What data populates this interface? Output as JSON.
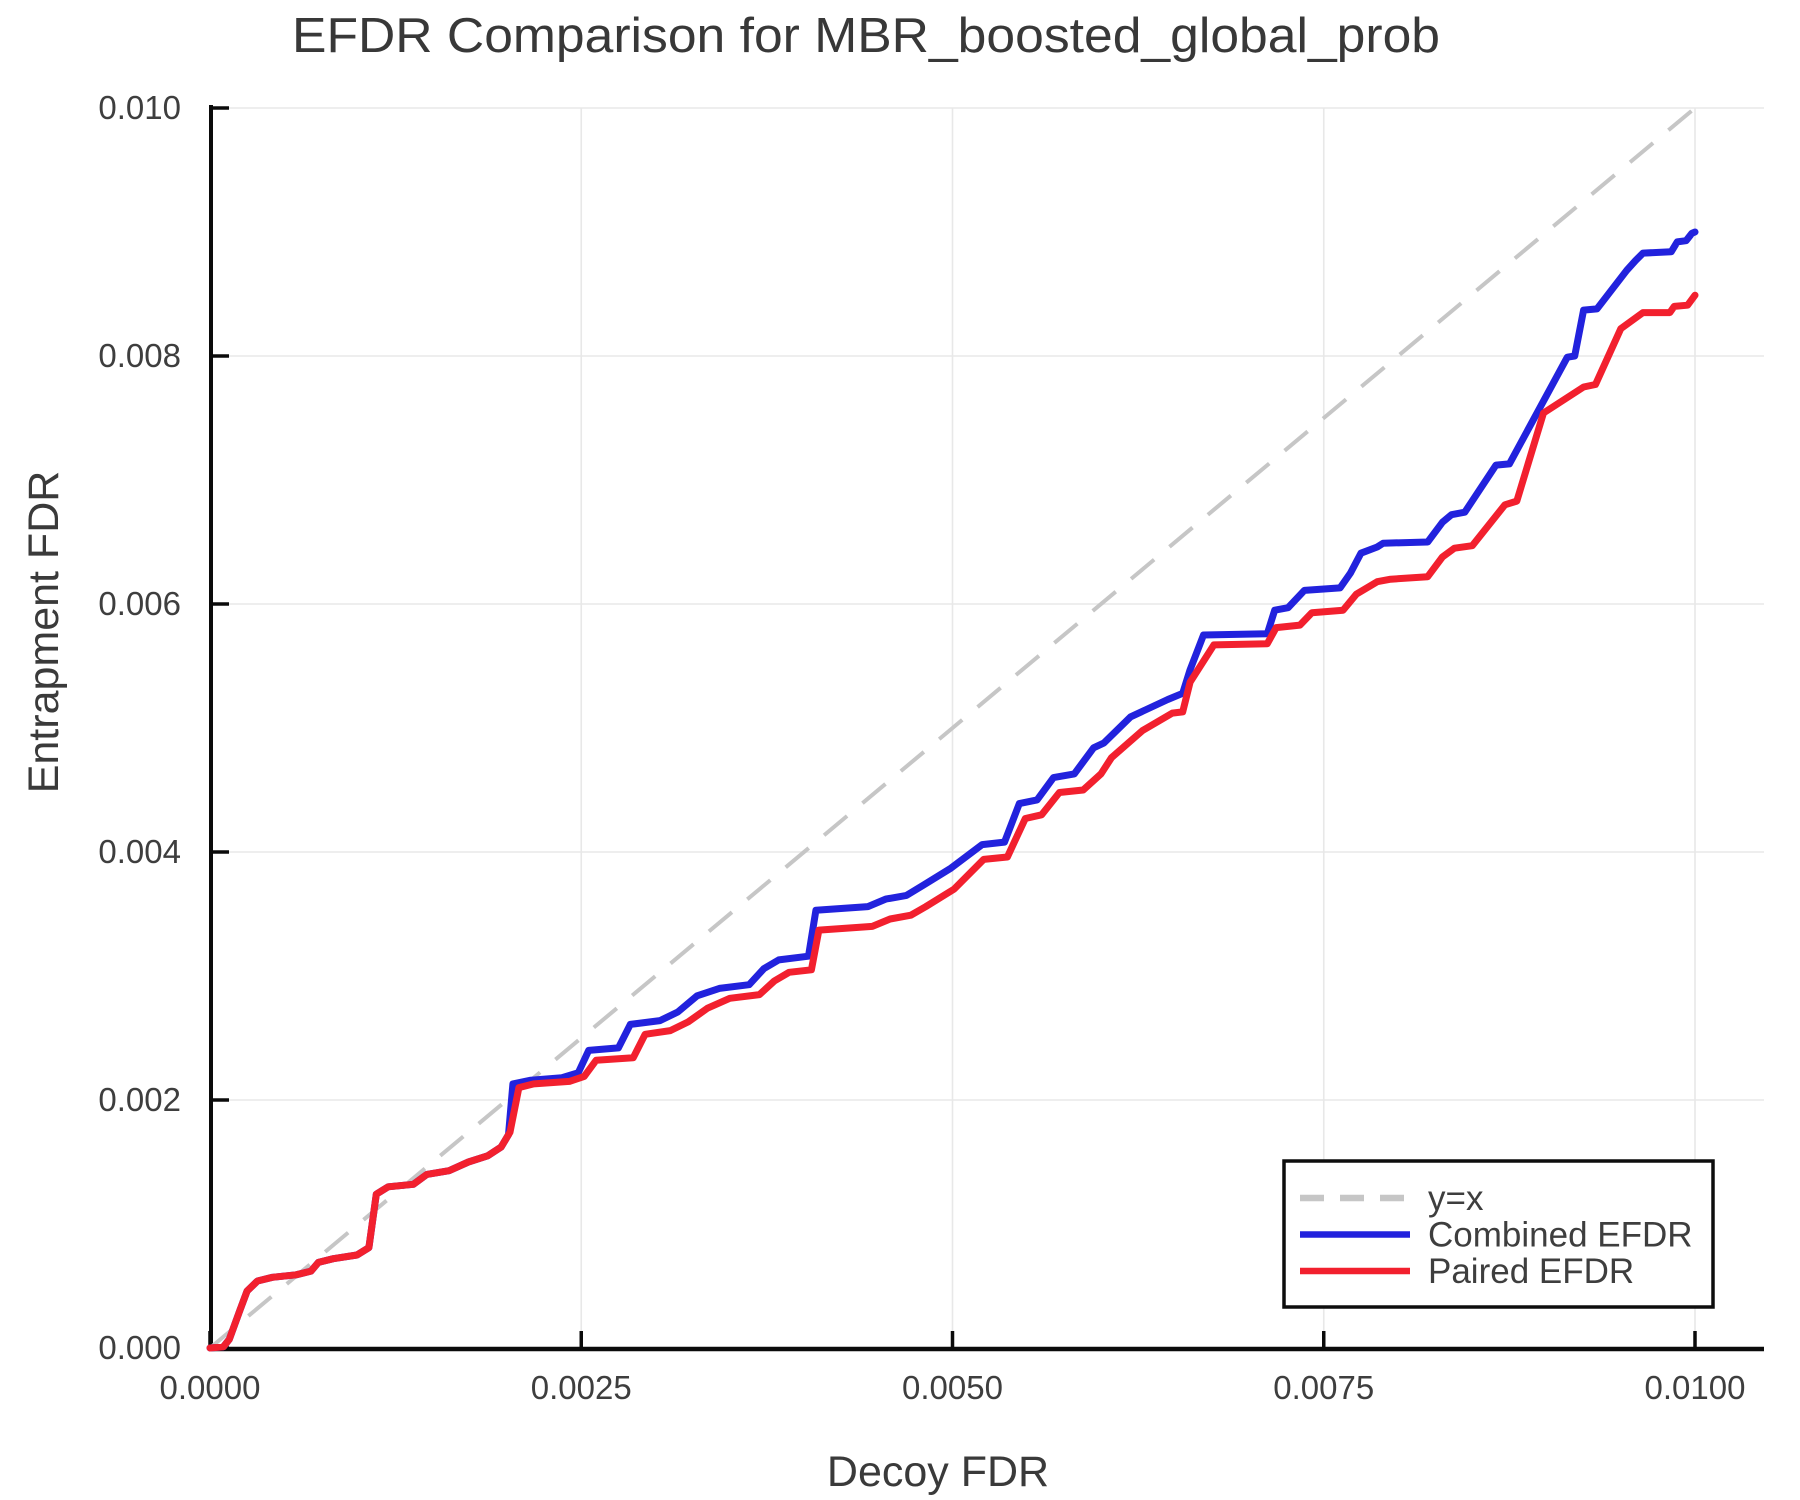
{
  "title": "EFDR Comparison for MBR_boosted_global_prob",
  "x_axis": {
    "label": "Decoy FDR",
    "tick_labels": [
      "0.0000",
      "0.0025",
      "0.0050",
      "0.0075",
      "0.0100"
    ],
    "tick_values": [
      0.0,
      0.0025,
      0.005,
      0.0075,
      0.01
    ]
  },
  "y_axis": {
    "label": "Entrapment FDR",
    "tick_labels": [
      "0.000",
      "0.002",
      "0.004",
      "0.006",
      "0.008",
      "0.010"
    ],
    "tick_values": [
      0.0,
      0.002,
      0.004,
      0.006,
      0.008,
      0.01
    ]
  },
  "colors": {
    "grid": "#e8e8e8",
    "identity": "#c6c6c6",
    "combined": "#2222dd",
    "paired": "#f2202e",
    "text": "#3d3d3d"
  },
  "chart_data": {
    "type": "line",
    "title": "EFDR Comparison for MBR_boosted_global_prob",
    "xlabel": "Decoy FDR",
    "ylabel": "Entrapment FDR",
    "xlim": [
      0.0,
      0.0105
    ],
    "ylim": [
      0.0,
      0.0101
    ],
    "grid": true,
    "legend_position": "bottom-right",
    "series": [
      {
        "name": "y=x",
        "style": "dashed",
        "color": "#c6c6c6",
        "points": [
          [
            0.0,
            0.0
          ],
          [
            0.01,
            0.01
          ]
        ]
      },
      {
        "name": "Combined EFDR",
        "style": "solid",
        "color": "#2222dd",
        "points": [
          [
            0.0,
            0.0
          ],
          [
            9e-05,
            1e-05
          ],
          [
            0.00013,
            7e-05
          ],
          [
            0.0002,
            0.0003
          ],
          [
            0.00025,
            0.00046
          ],
          [
            0.00032,
            0.00054
          ],
          [
            0.00042,
            0.00057
          ],
          [
            0.00058,
            0.00059
          ],
          [
            0.00068,
            0.00062
          ],
          [
            0.00073,
            0.00069
          ],
          [
            0.00083,
            0.00072
          ],
          [
            0.00099,
            0.00075
          ],
          [
            0.00107,
            0.00081
          ],
          [
            0.00112,
            0.00124
          ],
          [
            0.0012,
            0.0013
          ],
          [
            0.00137,
            0.00132
          ],
          [
            0.00146,
            0.0014
          ],
          [
            0.00161,
            0.00143
          ],
          [
            0.00174,
            0.0015
          ],
          [
            0.00187,
            0.00155
          ],
          [
            0.00196,
            0.00162
          ],
          [
            0.00201,
            0.00172
          ],
          [
            0.00204,
            0.00213
          ],
          [
            0.00216,
            0.00216
          ],
          [
            0.00237,
            0.00218
          ],
          [
            0.00248,
            0.00222
          ],
          [
            0.00255,
            0.0024
          ],
          [
            0.00275,
            0.00242
          ],
          [
            0.00283,
            0.00261
          ],
          [
            0.00303,
            0.00264
          ],
          [
            0.00315,
            0.00271
          ],
          [
            0.00328,
            0.00284
          ],
          [
            0.00343,
            0.0029
          ],
          [
            0.00363,
            0.00293
          ],
          [
            0.00373,
            0.00306
          ],
          [
            0.00383,
            0.00313
          ],
          [
            0.00403,
            0.00316
          ],
          [
            0.00408,
            0.00353
          ],
          [
            0.00443,
            0.00356
          ],
          [
            0.00455,
            0.00362
          ],
          [
            0.00469,
            0.00365
          ],
          [
            0.0048,
            0.00373
          ],
          [
            0.00499,
            0.00387
          ],
          [
            0.0052,
            0.00406
          ],
          [
            0.00535,
            0.00408
          ],
          [
            0.00545,
            0.00439
          ],
          [
            0.00557,
            0.00442
          ],
          [
            0.00568,
            0.0046
          ],
          [
            0.00582,
            0.00463
          ],
          [
            0.00595,
            0.00484
          ],
          [
            0.00602,
            0.00488
          ],
          [
            0.0062,
            0.00509
          ],
          [
            0.00645,
            0.00523
          ],
          [
            0.00655,
            0.00528
          ],
          [
            0.0066,
            0.00547
          ],
          [
            0.00669,
            0.00575
          ],
          [
            0.00712,
            0.00576
          ],
          [
            0.00717,
            0.00595
          ],
          [
            0.00726,
            0.00597
          ],
          [
            0.00737,
            0.00611
          ],
          [
            0.00761,
            0.00613
          ],
          [
            0.00768,
            0.00625
          ],
          [
            0.00775,
            0.00641
          ],
          [
            0.00786,
            0.00646
          ],
          [
            0.0079,
            0.00649
          ],
          [
            0.0082,
            0.0065
          ],
          [
            0.0083,
            0.00666
          ],
          [
            0.00836,
            0.00672
          ],
          [
            0.00845,
            0.00674
          ],
          [
            0.00866,
            0.00712
          ],
          [
            0.00875,
            0.00713
          ],
          [
            0.00914,
            0.00799
          ],
          [
            0.00919,
            0.008
          ],
          [
            0.00925,
            0.00837
          ],
          [
            0.00934,
            0.00838
          ],
          [
            0.00954,
            0.00869
          ],
          [
            0.0096,
            0.00877
          ],
          [
            0.00965,
            0.00883
          ],
          [
            0.00984,
            0.00884
          ],
          [
            0.00988,
            0.00892
          ],
          [
            0.00994,
            0.00893
          ],
          [
            0.00998,
            0.00899
          ],
          [
            0.01,
            0.009
          ]
        ]
      },
      {
        "name": "Paired EFDR",
        "style": "solid",
        "color": "#f2202e",
        "points": [
          [
            0.0,
            0.0
          ],
          [
            9e-05,
            1e-05
          ],
          [
            0.00013,
            7e-05
          ],
          [
            0.0002,
            0.0003
          ],
          [
            0.00025,
            0.00046
          ],
          [
            0.00032,
            0.00054
          ],
          [
            0.00042,
            0.00057
          ],
          [
            0.00058,
            0.00059
          ],
          [
            0.00068,
            0.00062
          ],
          [
            0.00073,
            0.00069
          ],
          [
            0.00083,
            0.00072
          ],
          [
            0.00099,
            0.00075
          ],
          [
            0.00107,
            0.00081
          ],
          [
            0.00112,
            0.00124
          ],
          [
            0.0012,
            0.0013
          ],
          [
            0.00137,
            0.00132
          ],
          [
            0.00146,
            0.0014
          ],
          [
            0.00161,
            0.00143
          ],
          [
            0.00174,
            0.0015
          ],
          [
            0.00187,
            0.00155
          ],
          [
            0.00196,
            0.00162
          ],
          [
            0.00202,
            0.00174
          ],
          [
            0.00208,
            0.0021
          ],
          [
            0.00218,
            0.00213
          ],
          [
            0.00242,
            0.00215
          ],
          [
            0.00252,
            0.00219
          ],
          [
            0.0026,
            0.00232
          ],
          [
            0.00285,
            0.00234
          ],
          [
            0.00293,
            0.00253
          ],
          [
            0.0031,
            0.00256
          ],
          [
            0.00322,
            0.00263
          ],
          [
            0.00335,
            0.00274
          ],
          [
            0.0035,
            0.00282
          ],
          [
            0.0037,
            0.00285
          ],
          [
            0.0038,
            0.00296
          ],
          [
            0.0039,
            0.00303
          ],
          [
            0.00405,
            0.00305
          ],
          [
            0.0041,
            0.00337
          ],
          [
            0.00446,
            0.0034
          ],
          [
            0.00458,
            0.00346
          ],
          [
            0.00472,
            0.00349
          ],
          [
            0.00482,
            0.00356
          ],
          [
            0.00501,
            0.0037
          ],
          [
            0.00521,
            0.00394
          ],
          [
            0.00537,
            0.00396
          ],
          [
            0.00549,
            0.00427
          ],
          [
            0.0056,
            0.0043
          ],
          [
            0.00572,
            0.00448
          ],
          [
            0.00588,
            0.0045
          ],
          [
            0.006,
            0.00463
          ],
          [
            0.00607,
            0.00476
          ],
          [
            0.00628,
            0.00498
          ],
          [
            0.00648,
            0.00512
          ],
          [
            0.00655,
            0.00513
          ],
          [
            0.0066,
            0.00537
          ],
          [
            0.00676,
            0.00567
          ],
          [
            0.00712,
            0.00568
          ],
          [
            0.00718,
            0.00581
          ],
          [
            0.00734,
            0.00583
          ],
          [
            0.00742,
            0.00593
          ],
          [
            0.00763,
            0.00595
          ],
          [
            0.00772,
            0.00608
          ],
          [
            0.00786,
            0.00618
          ],
          [
            0.00795,
            0.0062
          ],
          [
            0.0082,
            0.00622
          ],
          [
            0.0083,
            0.00638
          ],
          [
            0.00838,
            0.00645
          ],
          [
            0.0085,
            0.00647
          ],
          [
            0.00872,
            0.0068
          ],
          [
            0.0088,
            0.00683
          ],
          [
            0.00898,
            0.00754
          ],
          [
            0.00925,
            0.00775
          ],
          [
            0.00933,
            0.00777
          ],
          [
            0.0095,
            0.00822
          ],
          [
            0.00965,
            0.00835
          ],
          [
            0.00983,
            0.00835
          ],
          [
            0.00986,
            0.0084
          ],
          [
            0.00995,
            0.00841
          ],
          [
            0.01,
            0.00849
          ]
        ]
      }
    ]
  }
}
